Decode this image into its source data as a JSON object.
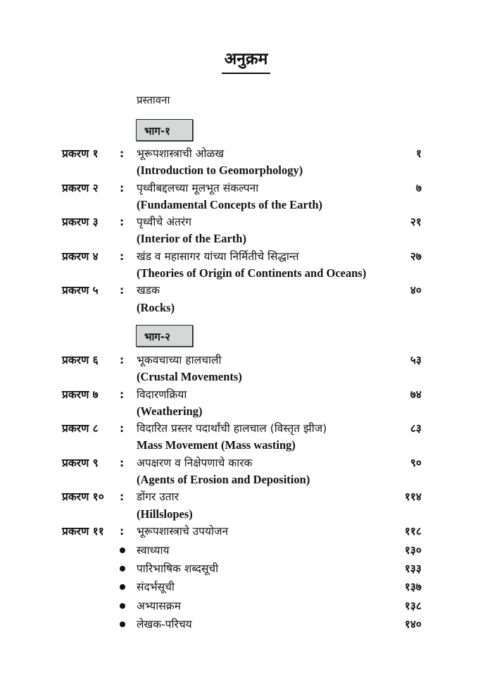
{
  "title": "अनुक्रम",
  "intro": "प्रस्तावना",
  "parts": [
    {
      "label": "भाग-१",
      "chapters": [
        {
          "label": "प्रकरण १",
          "title": "भूरूपशास्त्राची ओळख",
          "english": "(Introduction to Geomorphology)",
          "page": "१"
        },
        {
          "label": "प्रकरण २",
          "title": "पृथ्वीबद्दलच्या मूलभूत संकल्पना",
          "english": "(Fundamental Concepts of the Earth)",
          "page": "७"
        },
        {
          "label": "प्रकरण ३",
          "title": "पृथ्वीचे  अंतरंग",
          "english": "(Interior of the Earth)",
          "page": "२१"
        },
        {
          "label": "प्रकरण ४",
          "title": "खंड व महासागर यांच्या निर्मितीचे सिद्धान्त",
          "english": "(Theories of Origin of  Continents and Oceans)",
          "page": "२७"
        },
        {
          "label": "प्रकरण ५",
          "title": "खडक",
          "english": "(Rocks)",
          "page": "४०"
        }
      ]
    },
    {
      "label": "भाग-२",
      "chapters": [
        {
          "label": "प्रकरण ६",
          "title": "भूकवचाच्या हालचाली",
          "english": "(Crustal Movements)",
          "page": "५३"
        },
        {
          "label": "प्रकरण ७",
          "title": "विदारणक्रिया",
          "english": "(Weathering)",
          "page": "७४"
        },
        {
          "label": "प्रकरण ८",
          "title": "विदारित प्रस्तर पदार्थांची हालचाल (विस्तृत झीज)",
          "english": "Mass Movement (Mass wasting)",
          "page": "८३"
        },
        {
          "label": "प्रकरण ९",
          "title": "अपक्षरण व निक्षेपणाचे कारक",
          "english": "(Agents of Erosion and Deposition)",
          "page": "९०"
        },
        {
          "label": "प्रकरण १०",
          "title": "डोंगर उतार",
          "english": "(Hillslopes)",
          "page": "११४"
        },
        {
          "label": "प्रकरण ११",
          "title": "भूरूपशास्त्राचे उपयोजन",
          "english": "",
          "page": "११८"
        }
      ]
    }
  ],
  "colon": ":",
  "appendix": [
    {
      "title": "स्वाध्याय",
      "page": "१३०"
    },
    {
      "title": "पारिभाषिक शब्दसूची",
      "page": "१३३"
    },
    {
      "title": "संदर्भसूची",
      "page": "१३७"
    },
    {
      "title": "अभ्यासक्रम",
      "page": "१३८"
    },
    {
      "title": "लेखक-परिचय",
      "page": "१४०"
    }
  ]
}
